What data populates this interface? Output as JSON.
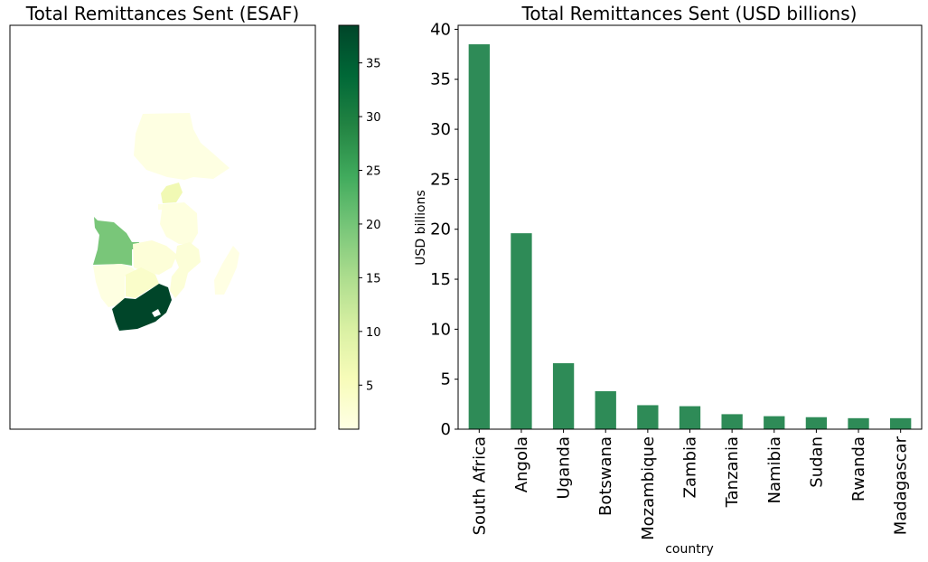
{
  "colors": {
    "bar": "#2e8b57",
    "colormap": [
      "#ffffe5",
      "#f7fcb9",
      "#d9f0a3",
      "#addd8e",
      "#78c679",
      "#41ab5d",
      "#238443",
      "#006837",
      "#004529"
    ]
  },
  "map": {
    "title": "Total Remittances Sent (ESAF)",
    "colorbar": {
      "ticks": [
        "5",
        "10",
        "15",
        "20",
        "25",
        "30",
        "35"
      ],
      "min": 0.9,
      "max": 38.5
    },
    "regions": [
      {
        "name": "South Africa",
        "value": 38.5
      },
      {
        "name": "Angola",
        "value": 19.6
      },
      {
        "name": "Uganda",
        "value": 6.6
      },
      {
        "name": "Botswana",
        "value": 3.8
      },
      {
        "name": "Mozambique",
        "value": 2.4
      },
      {
        "name": "Zambia",
        "value": 2.3
      },
      {
        "name": "Tanzania",
        "value": 1.5
      },
      {
        "name": "Namibia",
        "value": 1.3
      },
      {
        "name": "Sudan",
        "value": 1.2
      },
      {
        "name": "Rwanda",
        "value": 1.1
      },
      {
        "name": "Madagascar",
        "value": 1.1
      }
    ]
  },
  "chart_data": {
    "type": "bar",
    "title": "Total Remittances Sent (USD billions)",
    "xlabel": "country",
    "ylabel": "USD billions",
    "categories": [
      "South Africa",
      "Angola",
      "Uganda",
      "Botswana",
      "Mozambique",
      "Zambia",
      "Tanzania",
      "Namibia",
      "Sudan",
      "Rwanda",
      "Madagascar"
    ],
    "values": [
      38.5,
      19.6,
      6.6,
      3.8,
      2.4,
      2.3,
      1.5,
      1.3,
      1.2,
      1.1,
      1.1
    ],
    "yticks": [
      "0",
      "5",
      "10",
      "15",
      "20",
      "25",
      "30",
      "35",
      "40"
    ],
    "ylim": [
      0,
      40.4
    ],
    "grid": false,
    "legend": "none"
  }
}
